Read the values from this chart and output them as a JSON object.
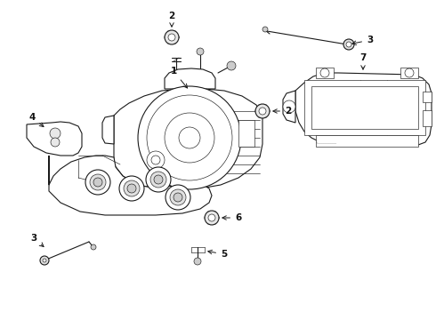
{
  "bg_color": "#ffffff",
  "line_color": "#1a1a1a",
  "label_color": "#111111",
  "fig_width": 4.9,
  "fig_height": 3.6,
  "dpi": 100,
  "lw_main": 0.8,
  "lw_thin": 0.45,
  "lw_thick": 1.1
}
